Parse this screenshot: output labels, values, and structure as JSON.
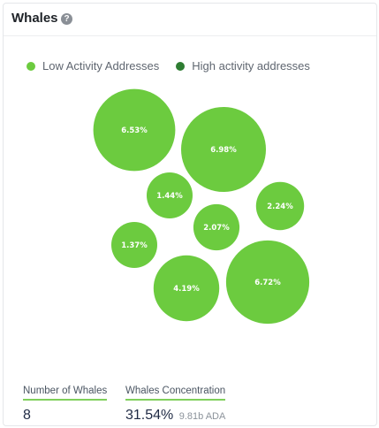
{
  "header": {
    "title": "Whales",
    "help_icon": "question-circle-icon",
    "help_glyph": "?"
  },
  "legend": [
    {
      "label": "Low Activity Addresses",
      "color": "#6ccb3f"
    },
    {
      "label": "High activity addresses",
      "color": "#2e7d32"
    }
  ],
  "chart_data": {
    "type": "bubble",
    "series": [
      {
        "name": "Low Activity Addresses",
        "color": "#6ccb3f"
      },
      {
        "name": "High activity addresses",
        "color": "#2e7d32"
      }
    ],
    "bubbles": [
      {
        "label": "6.53%",
        "value": 6.53,
        "series": "Low Activity Addresses"
      },
      {
        "label": "6.98%",
        "value": 6.98,
        "series": "Low Activity Addresses"
      },
      {
        "label": "1.44%",
        "value": 1.44,
        "series": "Low Activity Addresses"
      },
      {
        "label": "2.24%",
        "value": 2.24,
        "series": "Low Activity Addresses"
      },
      {
        "label": "2.07%",
        "value": 2.07,
        "series": "Low Activity Addresses"
      },
      {
        "label": "1.37%",
        "value": 1.37,
        "series": "Low Activity Addresses"
      },
      {
        "label": "4.19%",
        "value": 4.19,
        "series": "Low Activity Addresses"
      },
      {
        "label": "6.72%",
        "value": 6.72,
        "series": "Low Activity Addresses"
      }
    ]
  },
  "stats": {
    "number_of_whales": {
      "label": "Number of Whales",
      "value": "8"
    },
    "whales_concentration": {
      "label": "Whales Concentration",
      "value": "31.54%",
      "sub": "9.81b ADA"
    }
  }
}
